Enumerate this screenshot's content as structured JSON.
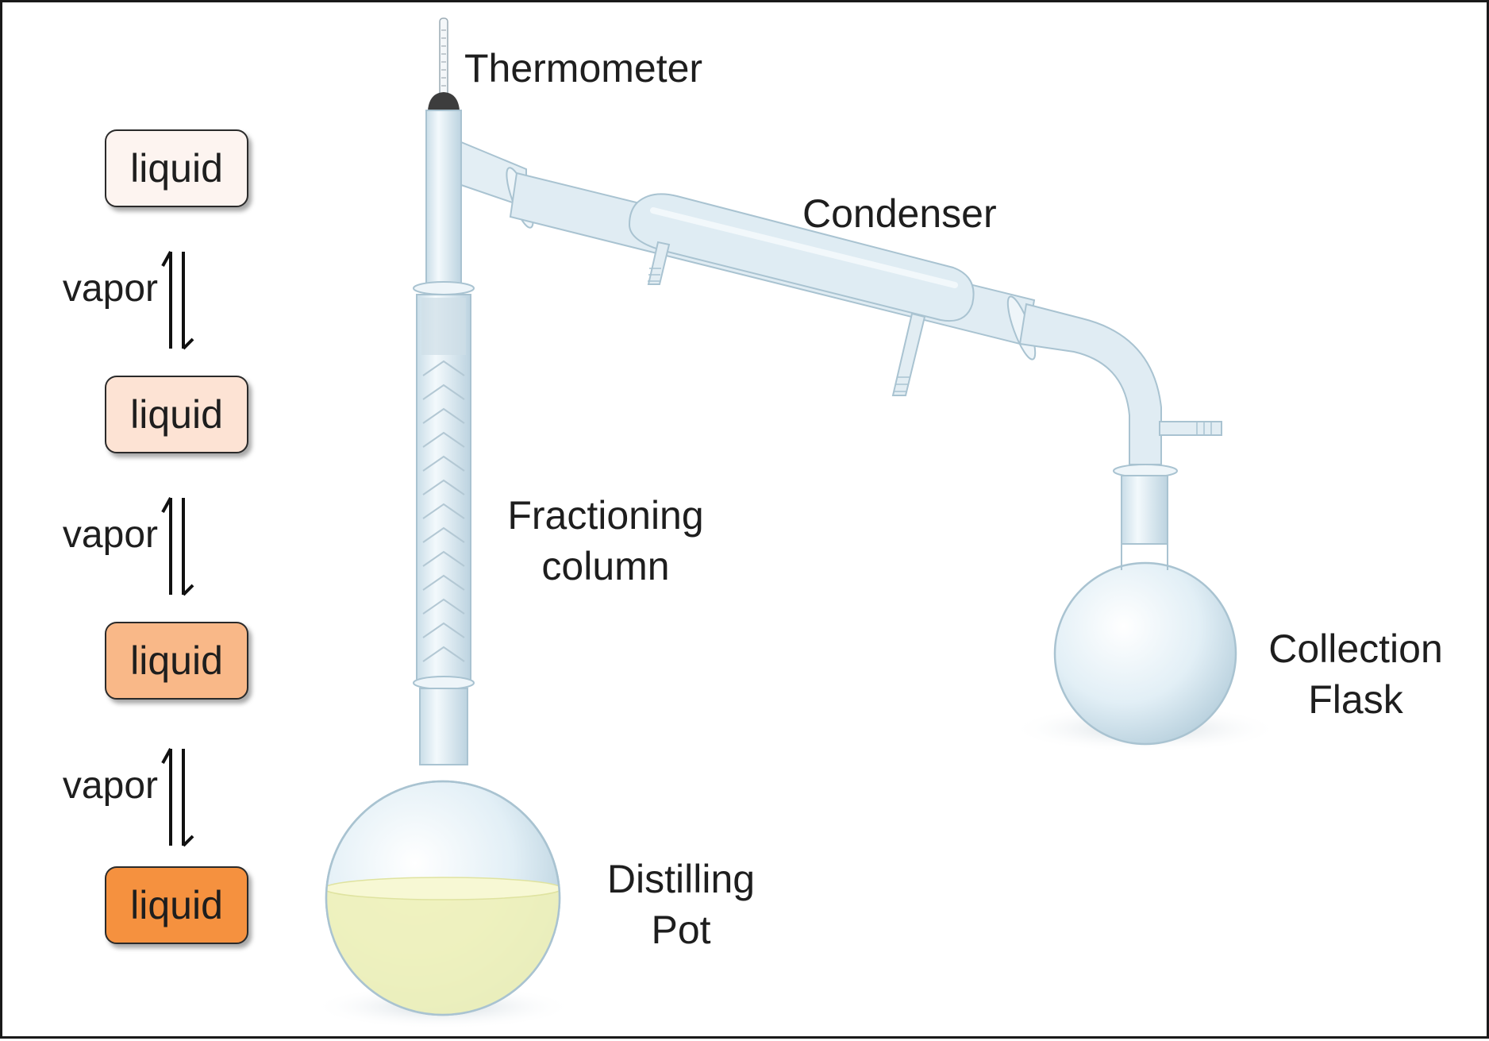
{
  "labels": {
    "thermometer": "Thermometer",
    "condenser": "Condenser",
    "fractioning_line1": "Fractioning",
    "fractioning_line2": "column",
    "collection_line1": "Collection",
    "collection_line2": "Flask",
    "distilling_line1": "Distilling",
    "distilling_line2": "Pot"
  },
  "equilibrium": {
    "liquid_label": "liquid",
    "vapor_label": "vapor",
    "liquid_colors": [
      "#fdf4f0",
      "#fde3d4",
      "#f9b888",
      "#f5913f"
    ],
    "symbol": "⇅ equilibrium half-arrows"
  },
  "colors": {
    "glass": "#dcebf3",
    "glass_edge": "#a9c3d1",
    "pot_liquid": "#eef1b8",
    "stopper": "#3d3d3d"
  }
}
